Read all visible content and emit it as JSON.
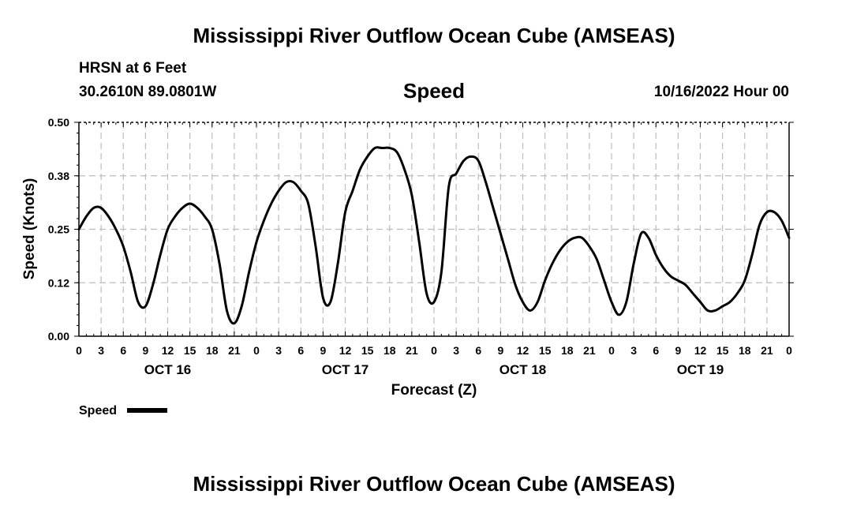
{
  "title": "Mississippi River Outflow Ocean Cube (AMSEAS)",
  "footer_title": "Mississippi River Outflow Ocean Cube (AMSEAS)",
  "header": {
    "station": "HRSN at 6 Feet",
    "coords": "30.2610N  89.0801W",
    "variable": "Speed",
    "datetime": "10/16/2022 Hour 00"
  },
  "chart_data": {
    "type": "line",
    "title": "Speed",
    "xlabel": "Forecast (Z)",
    "ylabel": "Speed (Knots)",
    "xlim": [
      0,
      96
    ],
    "ylim": [
      0,
      0.5
    ],
    "y_ticks": [
      "0.00",
      "0.12",
      "0.25",
      "0.38",
      "0.50"
    ],
    "y_tick_values": [
      0,
      0.125,
      0.25,
      0.375,
      0.5
    ],
    "x_tick_labels": [
      "0",
      "3",
      "6",
      "9",
      "12",
      "15",
      "18",
      "21",
      "0",
      "3",
      "6",
      "9",
      "12",
      "15",
      "18",
      "21",
      "0",
      "3",
      "6",
      "9",
      "12",
      "15",
      "18",
      "21",
      "0",
      "3",
      "6",
      "9",
      "12",
      "15",
      "18",
      "21",
      "0"
    ],
    "day_labels": [
      {
        "label": "OCT 16",
        "hour": 12
      },
      {
        "label": "OCT 17",
        "hour": 36
      },
      {
        "label": "OCT 18",
        "hour": 60
      },
      {
        "label": "OCT 19",
        "hour": 84
      }
    ],
    "grid": true,
    "legend": [
      {
        "name": "Speed",
        "color": "#000000"
      }
    ],
    "series": [
      {
        "name": "Speed",
        "color": "#000000",
        "x": [
          0,
          1,
          2,
          3,
          4,
          5,
          6,
          7,
          8,
          9,
          10,
          11,
          12,
          13,
          14,
          15,
          16,
          17,
          18,
          19,
          20,
          21,
          22,
          23,
          24,
          25,
          26,
          27,
          28,
          29,
          30,
          31,
          32,
          33,
          34,
          35,
          36,
          37,
          38,
          39,
          40,
          41,
          42,
          43,
          44,
          45,
          46,
          47,
          48,
          49,
          50,
          51,
          52,
          53,
          54,
          55,
          56,
          57,
          58,
          59,
          60,
          61,
          62,
          63,
          64,
          65,
          66,
          67,
          68,
          69,
          70,
          71,
          72,
          73,
          74,
          75,
          76,
          77,
          78,
          79,
          80,
          81,
          82,
          83,
          84,
          85,
          86,
          87,
          88,
          89,
          90,
          91,
          92,
          93,
          94,
          95,
          96
        ],
        "values": [
          0.25,
          0.28,
          0.3,
          0.3,
          0.28,
          0.25,
          0.21,
          0.15,
          0.08,
          0.07,
          0.12,
          0.19,
          0.25,
          0.28,
          0.3,
          0.31,
          0.3,
          0.28,
          0.25,
          0.17,
          0.06,
          0.03,
          0.07,
          0.15,
          0.22,
          0.27,
          0.31,
          0.34,
          0.36,
          0.36,
          0.34,
          0.31,
          0.21,
          0.09,
          0.08,
          0.17,
          0.29,
          0.34,
          0.39,
          0.42,
          0.44,
          0.44,
          0.44,
          0.43,
          0.39,
          0.33,
          0.22,
          0.1,
          0.08,
          0.15,
          0.35,
          0.38,
          0.41,
          0.42,
          0.41,
          0.36,
          0.3,
          0.24,
          0.18,
          0.12,
          0.08,
          0.06,
          0.08,
          0.13,
          0.17,
          0.2,
          0.22,
          0.23,
          0.23,
          0.21,
          0.18,
          0.13,
          0.08,
          0.05,
          0.08,
          0.17,
          0.24,
          0.23,
          0.19,
          0.16,
          0.14,
          0.13,
          0.12,
          0.1,
          0.08,
          0.06,
          0.06,
          0.07,
          0.08,
          0.1,
          0.13,
          0.19,
          0.26,
          0.29,
          0.29,
          0.27,
          0.23
        ]
      }
    ]
  }
}
